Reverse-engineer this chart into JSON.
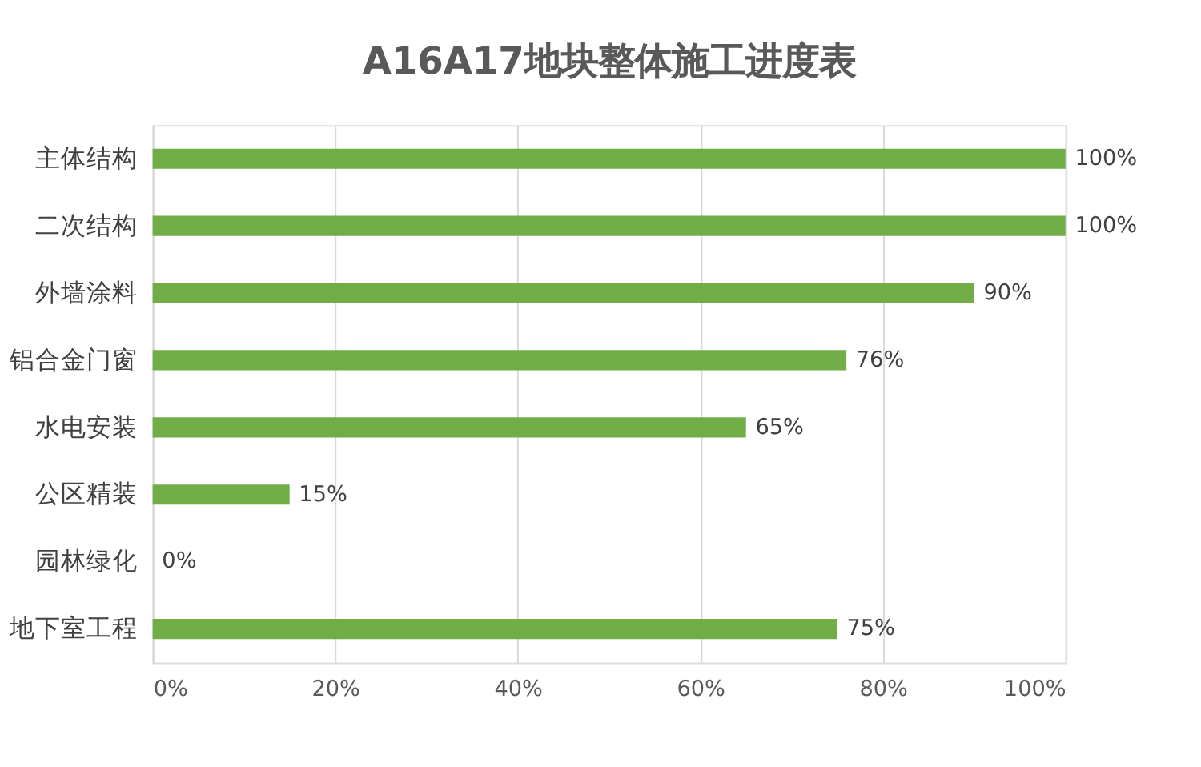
{
  "chart_data": {
    "type": "bar",
    "orientation": "horizontal",
    "title": "A16A17地块整体施工进度表",
    "categories": [
      "主体结构",
      "二次结构",
      "外墙涂料",
      "铝合金门窗",
      "水电安装",
      "公区精装",
      "园林绿化",
      "地下室工程"
    ],
    "values": [
      100,
      100,
      90,
      76,
      65,
      15,
      0,
      75
    ],
    "value_labels": [
      "100%",
      "100%",
      "90%",
      "76%",
      "65%",
      "15%",
      "0%",
      "75%"
    ],
    "color": "#70ad47",
    "xlim": [
      0,
      100
    ],
    "xticks": [
      {
        "value": 0,
        "label": "0%"
      },
      {
        "value": 20,
        "label": "20%"
      },
      {
        "value": 40,
        "label": "40%"
      },
      {
        "value": 60,
        "label": "60%"
      },
      {
        "value": 80,
        "label": "80%"
      },
      {
        "value": 100,
        "label": "100%"
      }
    ],
    "grid": "x"
  }
}
